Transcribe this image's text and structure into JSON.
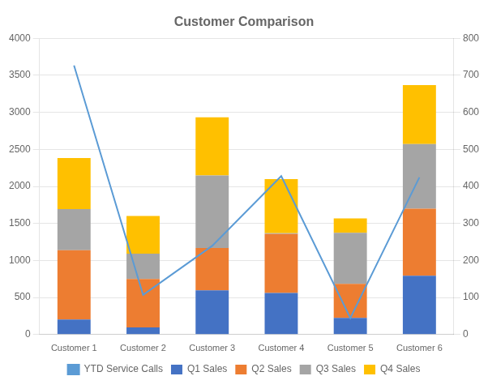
{
  "chart_data": {
    "type": "bar",
    "title": "Customer Comparison",
    "categories": [
      "Customer 1",
      "Customer 2",
      "Customer 3",
      "Customer 4",
      "Customer 5",
      "Customer 6"
    ],
    "stacked": true,
    "grid": true,
    "legend": "bottom",
    "series": [
      {
        "name": "Q1 Sales",
        "color": "#4472C4",
        "values": [
          202.6,
          95,
          596.8,
          560,
          226.2,
          793.4
        ]
      },
      {
        "name": "Q2 Sales",
        "color": "#ED7D31",
        "values": [
          935.9,
          654.3,
          573,
          796.1,
          459.5,
          905.3
        ]
      },
      {
        "name": "Q3 Sales",
        "color": "#A5A5A5",
        "values": [
          554.7,
          341.5,
          978.1,
          13.3,
          688.6,
          872.8
        ]
      },
      {
        "name": "Q4 Sales",
        "color": "#FFC000",
        "values": [
          690.7,
          510.5,
          785.7,
          728.6,
          192.3,
          795.7
        ]
      },
      {
        "name": "YTD Service Calls",
        "type": "line",
        "axis": "y2",
        "color": "#5B9BD5",
        "values": [
          726.5,
          107.1,
          239.3,
          428,
          44.4,
          424.3
        ]
      }
    ],
    "ylim": [
      0,
      4000
    ],
    "yticks": [
      0,
      500,
      1000,
      1500,
      2000,
      2500,
      3000,
      3500,
      4000
    ],
    "y2lim": [
      0,
      800
    ],
    "y2ticks": [
      0,
      100,
      200,
      300,
      400,
      500,
      600,
      700,
      800
    ]
  }
}
